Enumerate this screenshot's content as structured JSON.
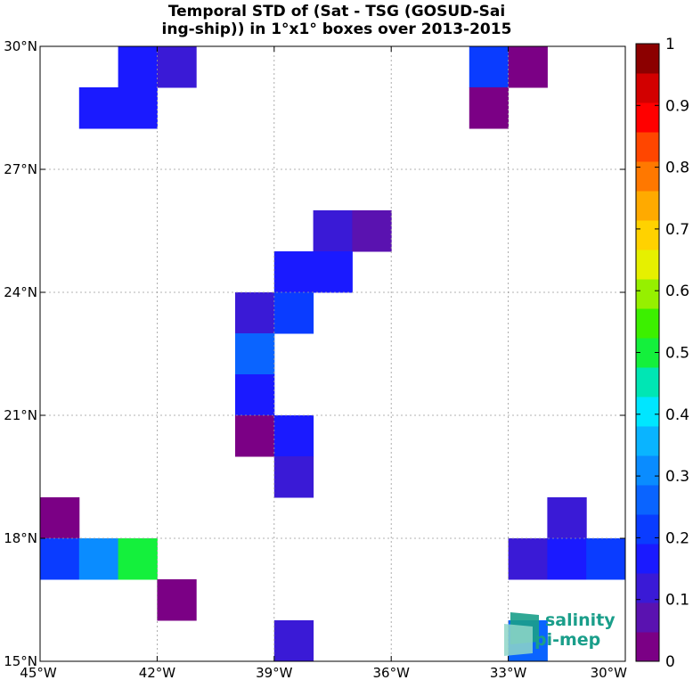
{
  "chart_data": {
    "type": "heatmap",
    "title": [
      "Temporal STD of (Sat - TSG (GOSUD-Sai",
      "ing-ship)) in 1°x1° boxes over 2013-2015"
    ],
    "xlim": [
      -45,
      -30
    ],
    "ylim": [
      15,
      30
    ],
    "xticks": [
      {
        "value": -45,
        "label": "45°W"
      },
      {
        "value": -42,
        "label": "42°W"
      },
      {
        "value": -39,
        "label": "39°W"
      },
      {
        "value": -36,
        "label": "36°W"
      },
      {
        "value": -33,
        "label": "33°W"
      },
      {
        "value": -30,
        "label": "30°W"
      }
    ],
    "yticks": [
      {
        "value": 15,
        "label": "15°N"
      },
      {
        "value": 18,
        "label": "18°N"
      },
      {
        "value": 21,
        "label": "21°N"
      },
      {
        "value": 24,
        "label": "24°N"
      },
      {
        "value": 27,
        "label": "27°N"
      },
      {
        "value": 30,
        "label": "30°N"
      }
    ],
    "grid": true,
    "colorbar": {
      "range": [
        0,
        1
      ],
      "levels": 20,
      "ticks": [
        "0",
        "0.1",
        "0.2",
        "0.3",
        "0.4",
        "0.5",
        "0.6",
        "0.7",
        "0.8",
        "0.9",
        "1"
      ],
      "colors": [
        "#7b0085",
        "#5a12b0",
        "#3a1ad6",
        "#1a1aff",
        "#0a3cff",
        "#0a64ff",
        "#0a8cff",
        "#0ab4ff",
        "#00e6ff",
        "#00e6b4",
        "#14f03c",
        "#3cf000",
        "#96f000",
        "#e6f000",
        "#ffd200",
        "#ffaa00",
        "#ff7800",
        "#ff4600",
        "#ff0000",
        "#d20000",
        "#8c0000"
      ]
    },
    "cells": [
      {
        "lon": -43,
        "lat": 29,
        "value": 0.18
      },
      {
        "lon": -42,
        "lat": 29,
        "value": 0.13
      },
      {
        "lon": -44,
        "lat": 28,
        "value": 0.18
      },
      {
        "lon": -43,
        "lat": 28,
        "value": 0.18
      },
      {
        "lon": -34,
        "lat": 29,
        "value": 0.21
      },
      {
        "lon": -33,
        "lat": 29,
        "value": 0.04
      },
      {
        "lon": -34,
        "lat": 28,
        "value": 0.04
      },
      {
        "lon": -38,
        "lat": 25,
        "value": 0.13
      },
      {
        "lon": -37,
        "lat": 25,
        "value": 0.07
      },
      {
        "lon": -39,
        "lat": 24,
        "value": 0.18
      },
      {
        "lon": -38,
        "lat": 24,
        "value": 0.18
      },
      {
        "lon": -40,
        "lat": 23,
        "value": 0.1
      },
      {
        "lon": -39,
        "lat": 23,
        "value": 0.22
      },
      {
        "lon": -40,
        "lat": 22,
        "value": 0.27
      },
      {
        "lon": -40,
        "lat": 21,
        "value": 0.18
      },
      {
        "lon": -40,
        "lat": 20,
        "value": 0.04
      },
      {
        "lon": -39,
        "lat": 20,
        "value": 0.18
      },
      {
        "lon": -39,
        "lat": 19,
        "value": 0.13
      },
      {
        "lon": -45,
        "lat": 18,
        "value": 0.04
      },
      {
        "lon": -45,
        "lat": 17,
        "value": 0.22
      },
      {
        "lon": -44,
        "lat": 17,
        "value": 0.3
      },
      {
        "lon": -43,
        "lat": 17,
        "value": 0.53
      },
      {
        "lon": -42,
        "lat": 16,
        "value": 0.04
      },
      {
        "lon": -39,
        "lat": 15,
        "value": 0.1
      },
      {
        "lon": -32,
        "lat": 18,
        "value": 0.13
      },
      {
        "lon": -33,
        "lat": 17,
        "value": 0.13
      },
      {
        "lon": -32,
        "lat": 17,
        "value": 0.18
      },
      {
        "lon": -31,
        "lat": 17,
        "value": 0.22
      },
      {
        "lon": -33,
        "lat": 15,
        "value": 0.27
      }
    ]
  },
  "logo": {
    "line1": "salinity",
    "line2": "pi-mep",
    "text_color": "#1a9e8a"
  }
}
